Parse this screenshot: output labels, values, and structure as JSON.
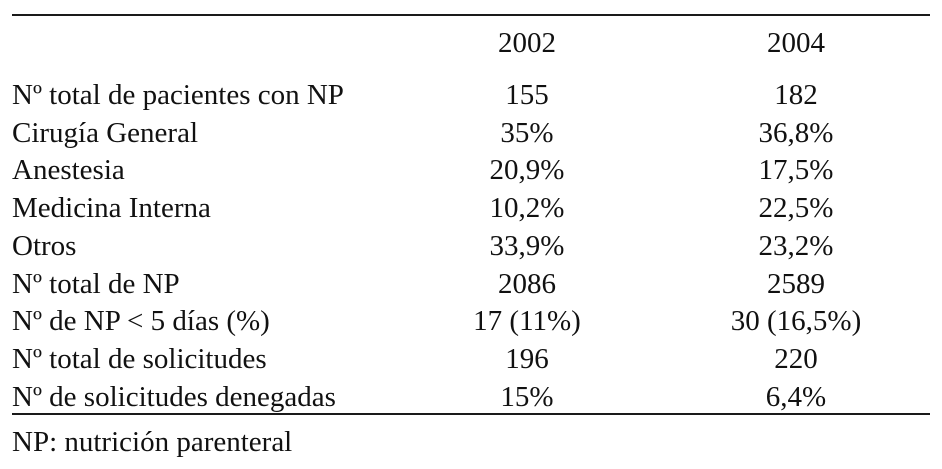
{
  "table": {
    "columns": [
      "",
      "2002",
      "2004"
    ],
    "rows": [
      {
        "label": "Nº total de pacientes con NP",
        "y2002": "155",
        "y2004": "182"
      },
      {
        "label": "Cirugía General",
        "y2002": "35%",
        "y2004": "36,8%"
      },
      {
        "label": "Anestesia",
        "y2002": "20,9%",
        "y2004": "17,5%"
      },
      {
        "label": "Medicina Interna",
        "y2002": "10,2%",
        "y2004": "22,5%"
      },
      {
        "label": "Otros",
        "y2002": "33,9%",
        "y2004": "23,2%"
      },
      {
        "label": "Nº total de NP",
        "y2002": "2086",
        "y2004": "2589"
      },
      {
        "label": "Nº de NP < 5 días (%)",
        "y2002": "17 (11%)",
        "y2004": "30 (16,5%)"
      },
      {
        "label": "Nº total de solicitudes",
        "y2002": "196",
        "y2004": "220"
      },
      {
        "label": "Nº de solicitudes denegadas",
        "y2002": "15%",
        "y2004": "6,4%"
      }
    ]
  },
  "footnote": "NP: nutrición parenteral"
}
